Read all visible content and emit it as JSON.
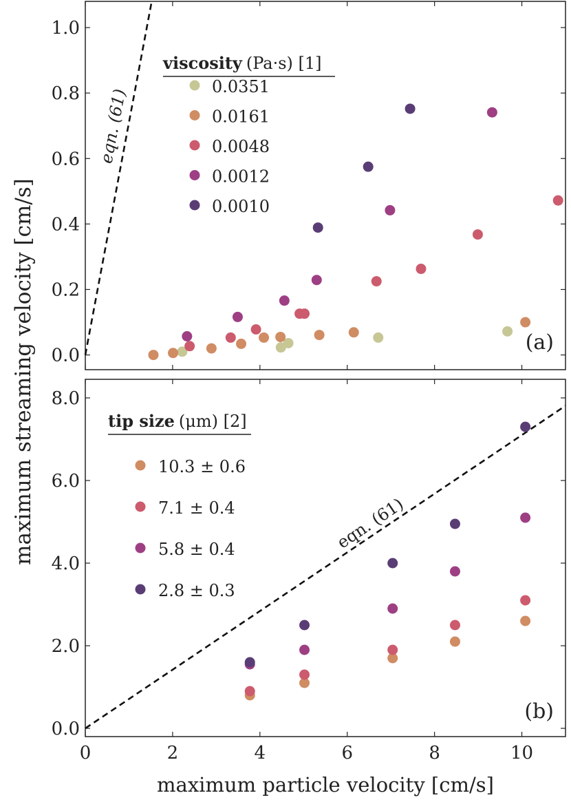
{
  "chart_data": [
    {
      "type": "scatter",
      "panel_label": "(a)",
      "xlabel": "maximum particle velocity [cm/s]",
      "ylabel": "maximum streaming velocity [cm/s]",
      "xlim": [
        0,
        11
      ],
      "ylim": [
        -0.045,
        1.08
      ],
      "yticks": [
        0.0,
        0.2,
        0.4,
        0.6,
        0.8,
        1.0
      ],
      "ytick_labels": [
        "0.0",
        "0.2",
        "0.4",
        "0.6",
        "0.8",
        "1.0"
      ],
      "legend": {
        "title_bold": "viscosity",
        "title_rest": "(Pa·s) [1]",
        "placement": "top-left"
      },
      "line": {
        "label": "eqn. (61)",
        "slope": 0.71
      },
      "series": [
        {
          "name": "0.0351",
          "color": "#c6c795",
          "x": [
            2.22,
            4.48,
            4.65,
            6.71,
            9.67
          ],
          "y": [
            0.01,
            0.023,
            0.036,
            0.053,
            0.072
          ]
        },
        {
          "name": "0.0161",
          "color": "#d08c63",
          "x": [
            1.56,
            2.01,
            2.89,
            3.57,
            4.09,
            4.47,
            5.36,
            6.15,
            10.08
          ],
          "y": [
            0.0,
            0.006,
            0.02,
            0.034,
            0.053,
            0.055,
            0.061,
            0.069,
            0.1
          ]
        },
        {
          "name": "0.0048",
          "color": "#cc5b6d",
          "x": [
            2.39,
            3.33,
            3.91,
            4.91,
            5.02,
            6.67,
            7.69,
            8.99,
            10.83
          ],
          "y": [
            0.027,
            0.053,
            0.078,
            0.126,
            0.126,
            0.225,
            0.263,
            0.368,
            0.472
          ]
        },
        {
          "name": "0.0012",
          "color": "#9e3f84",
          "x": [
            2.33,
            3.49,
            4.56,
            5.3,
            6.98,
            9.32
          ],
          "y": [
            0.057,
            0.116,
            0.166,
            0.229,
            0.442,
            0.741
          ]
        },
        {
          "name": "0.0010",
          "color": "#5a3d75",
          "x": [
            5.33,
            6.48,
            7.44
          ],
          "y": [
            0.389,
            0.575,
            0.752
          ]
        }
      ]
    },
    {
      "type": "scatter",
      "panel_label": "(b)",
      "xlabel": "maximum particle velocity [cm/s]",
      "ylabel": "maximum streaming velocity [cm/s]",
      "xlim": [
        0,
        11
      ],
      "ylim": [
        -0.2,
        8.45
      ],
      "xticks": [
        0,
        2,
        4,
        6,
        8,
        10
      ],
      "xtick_labels": [
        "0",
        "2",
        "4",
        "6",
        "8",
        "10"
      ],
      "yticks": [
        0,
        2,
        4,
        6,
        8
      ],
      "ytick_labels": [
        "0.0",
        "2.0",
        "4.0",
        "6.0",
        "8.0"
      ],
      "legend": {
        "title_bold": "tip size",
        "title_rest": "(μm) [2]",
        "placement": "top-left"
      },
      "line": {
        "label": "eqn. (61)",
        "slope": 0.71
      },
      "series": [
        {
          "name": "10.3 ± 0.6",
          "color": "#d08c63",
          "x": [
            3.77,
            5.02,
            7.04,
            8.47,
            10.08
          ],
          "y": [
            0.8,
            1.1,
            1.7,
            2.1,
            2.6
          ]
        },
        {
          "name": "7.1 ± 0.4",
          "color": "#cc5b6d",
          "x": [
            3.77,
            5.02,
            7.04,
            8.47,
            10.08
          ],
          "y": [
            0.9,
            1.3,
            1.9,
            2.5,
            3.1
          ]
        },
        {
          "name": "5.8 ± 0.4",
          "color": "#9e3f84",
          "x": [
            3.77,
            5.02,
            7.04,
            8.47,
            10.08
          ],
          "y": [
            1.55,
            1.9,
            2.9,
            3.8,
            5.1
          ]
        },
        {
          "name": "2.8 ± 0.3",
          "color": "#5a3d75",
          "x": [
            3.77,
            5.02,
            7.04,
            8.47,
            10.08
          ],
          "y": [
            1.6,
            2.5,
            4.0,
            4.95,
            7.3
          ]
        }
      ]
    }
  ]
}
